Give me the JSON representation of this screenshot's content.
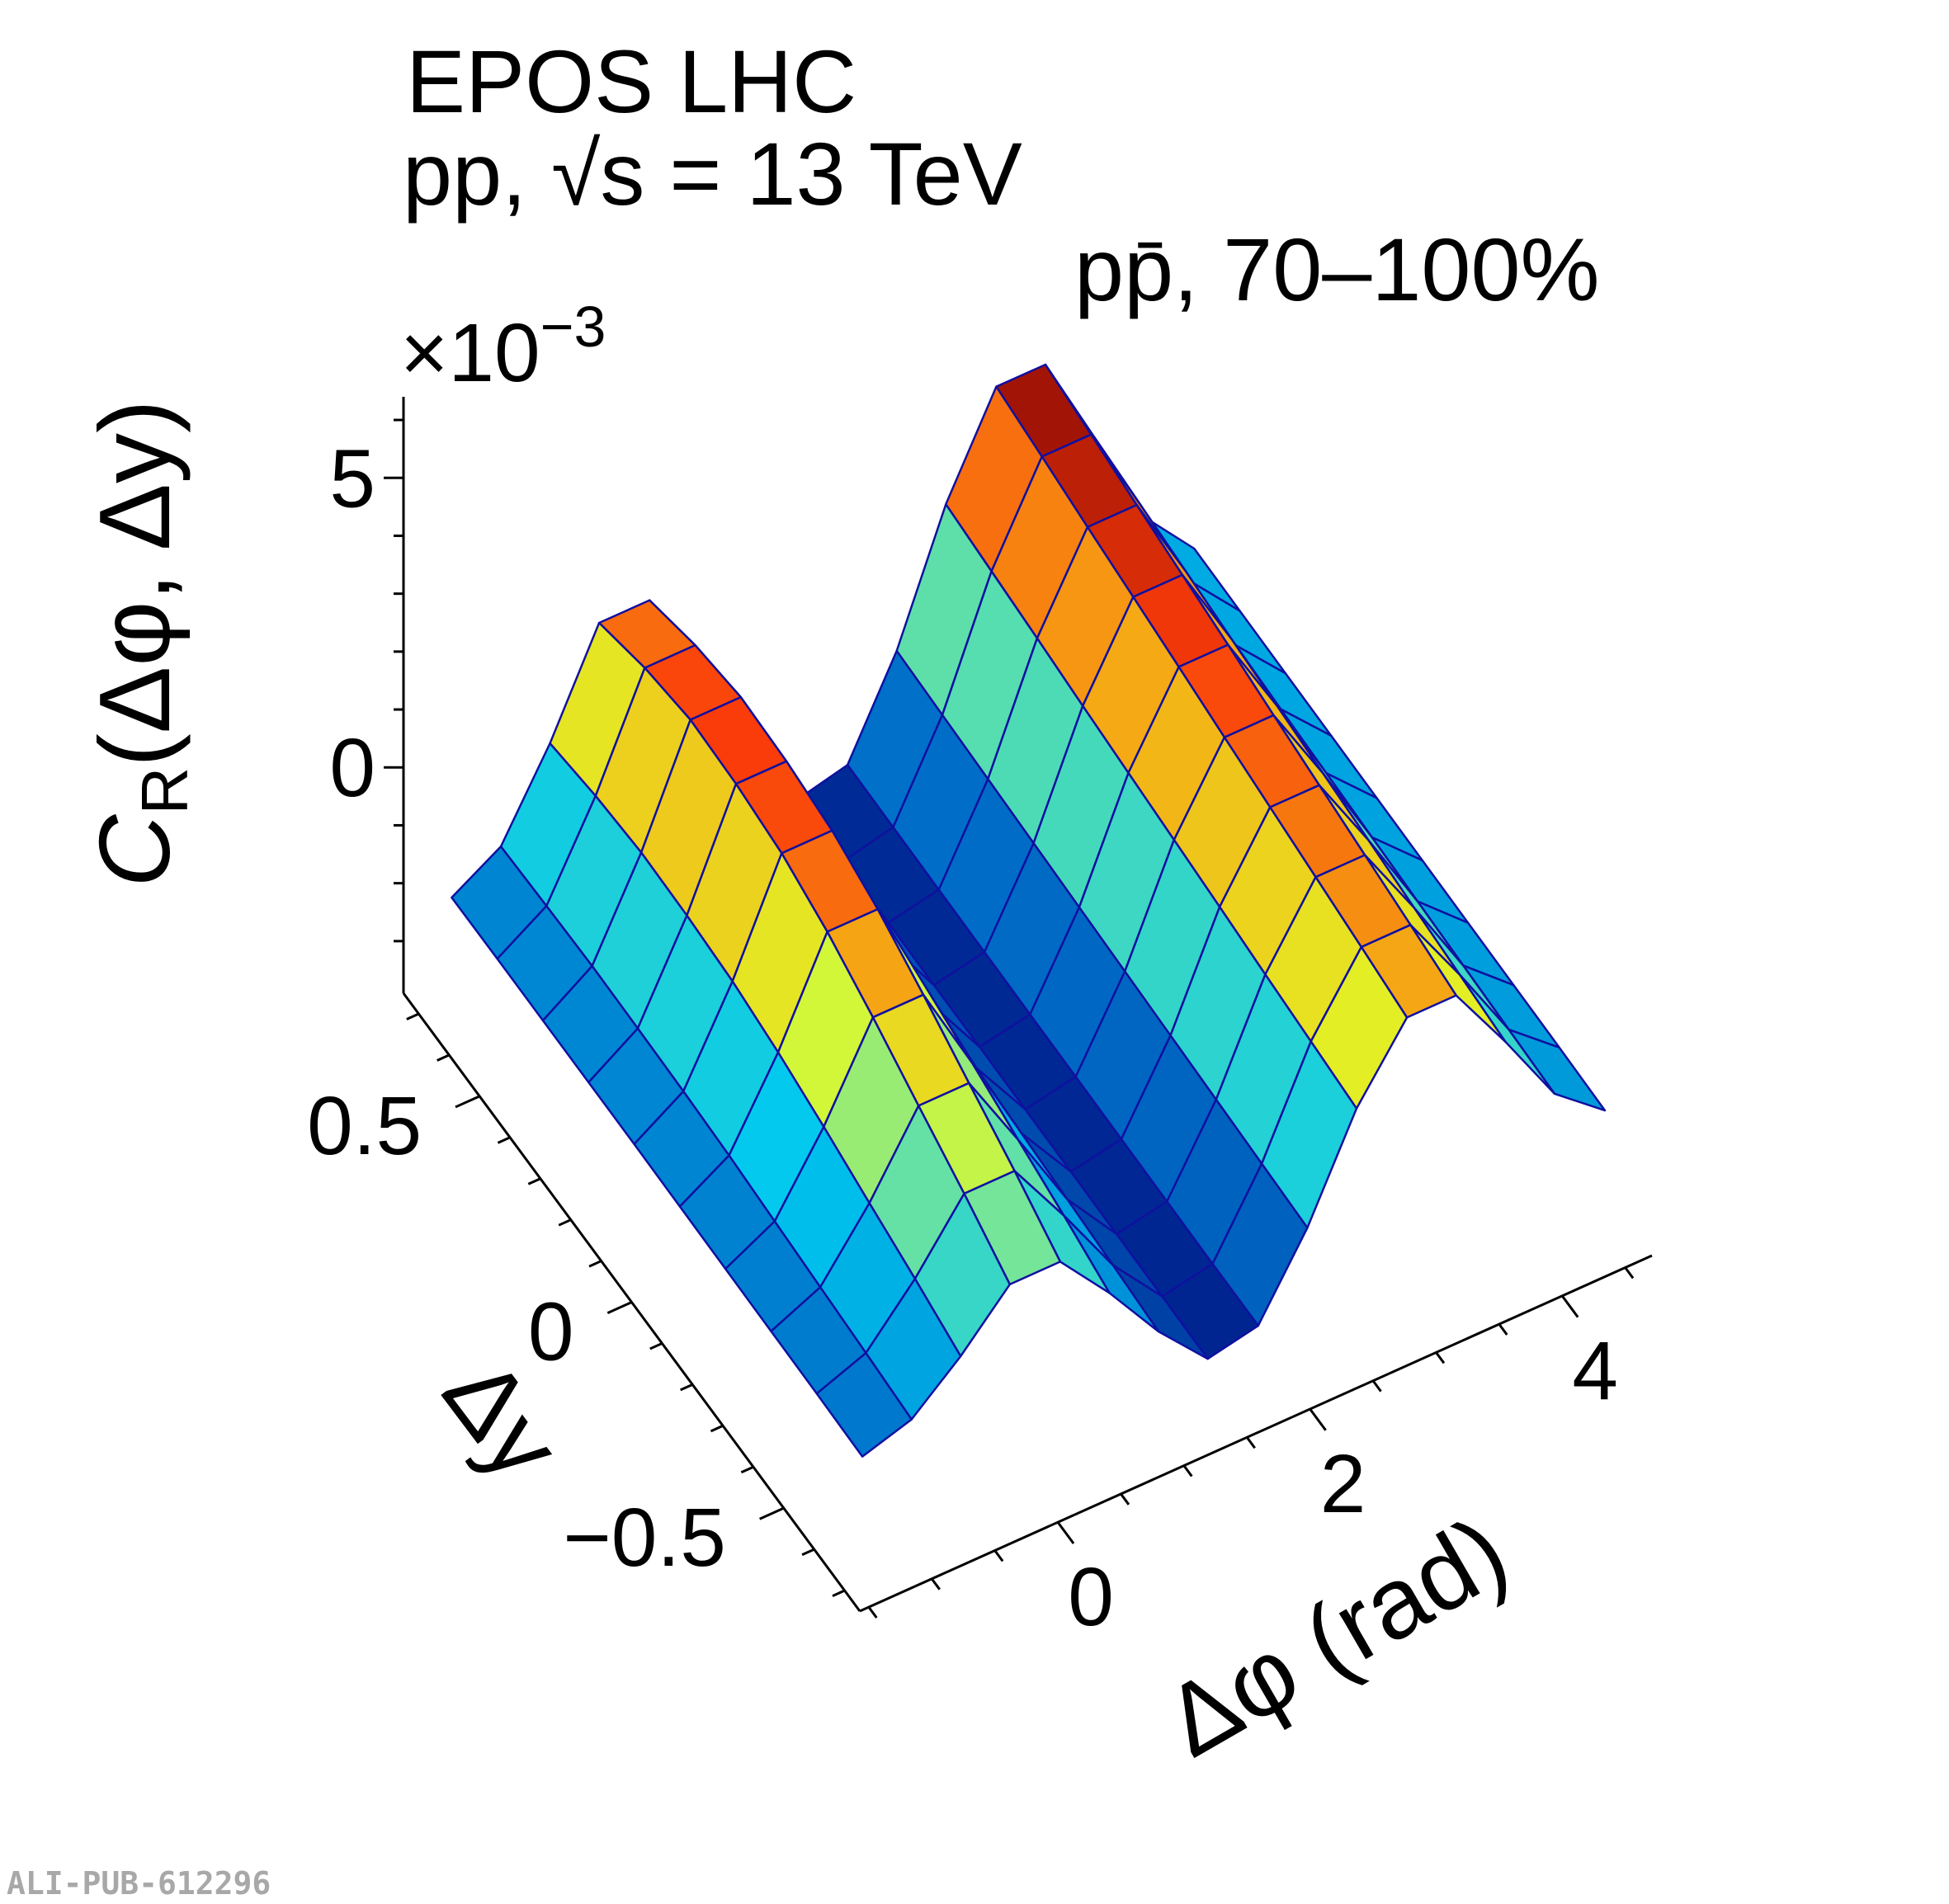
{
  "header": {
    "generator": "EPOS LHC",
    "system": "pp, √s = 13 TeV",
    "pair_label": "pp̄, 70–100%"
  },
  "watermark": "ALI-PUB-612296",
  "chart_data": {
    "type": "surface",
    "title": "",
    "x_axis": {
      "label": "Δφ (rad)",
      "range": [
        -1.571,
        4.712
      ],
      "ticks": [
        0,
        2,
        4
      ],
      "tick_labels": [
        "0",
        "2",
        "4"
      ]
    },
    "y_axis": {
      "label": "Δy",
      "range": [
        -0.75,
        0.75
      ],
      "ticks": [
        0.5,
        0,
        -0.5
      ],
      "tick_labels": [
        "0.5",
        "0",
        "−0.5"
      ]
    },
    "z_axis": {
      "label_main": "C",
      "label_sub": "R",
      "label_rest": "(Δφ, Δy)",
      "multiplier_base": "×10",
      "multiplier_exp": "−3",
      "range": [
        -3.9,
        6.4
      ],
      "ticks": [
        5,
        0
      ],
      "tick_labels": [
        "5",
        "0"
      ]
    },
    "colormap": "jet",
    "grid_color": "#1010a0",
    "phi_centers": [
      -1.37,
      -0.98,
      -0.59,
      -0.2,
      0.2,
      0.59,
      0.98,
      1.37,
      1.77,
      2.16,
      2.55,
      2.95,
      3.34,
      3.73,
      4.12,
      4.52
    ],
    "dy_centers": [
      0.675,
      0.525,
      0.375,
      0.225,
      0.075,
      -0.075,
      -0.225,
      -0.375,
      -0.525,
      -0.675
    ],
    "z_values": [
      [
        -1.91,
        -1.41,
        -0.01,
        1.69,
        1.69,
        -0.07,
        -1.81,
        -2.9,
        -2.69,
        -1.1,
        1.05,
        2.69,
        2.69,
        1.05,
        -0.7,
        -1.64
      ],
      [
        -1.9,
        -1.37,
        0.15,
        1.98,
        1.98,
        0.09,
        -1.77,
        -2.9,
        -2.7,
        -1.14,
        0.96,
        2.55,
        2.55,
        0.96,
        -0.74,
        -1.65
      ],
      [
        -1.9,
        -1.34,
        0.24,
        2.15,
        2.15,
        0.18,
        -1.74,
        -2.89,
        -2.71,
        -1.18,
        0.87,
        2.4,
        2.4,
        0.87,
        -0.78,
        -1.66
      ],
      [
        -1.9,
        -1.35,
        0.22,
        2.11,
        2.11,
        0.16,
        -1.75,
        -2.9,
        -2.72,
        -1.22,
        0.77,
        2.26,
        2.26,
        0.77,
        -0.82,
        -1.67
      ],
      [
        -1.9,
        -1.37,
        0.15,
        1.98,
        1.98,
        0.09,
        -1.77,
        -2.9,
        -2.73,
        -1.26,
        0.68,
        2.12,
        2.12,
        0.68,
        -0.86,
        -1.68
      ],
      [
        -1.91,
        -1.41,
        -0.01,
        1.69,
        1.69,
        -0.07,
        -1.81,
        -2.91,
        -2.74,
        -1.3,
        0.59,
        1.97,
        1.97,
        0.59,
        -0.9,
        -1.69
      ],
      [
        -1.92,
        -1.48,
        -0.23,
        1.28,
        1.28,
        -0.29,
        -1.88,
        -2.92,
        -2.75,
        -1.34,
        0.5,
        1.83,
        1.83,
        0.5,
        -0.94,
        -1.7
      ],
      [
        -1.93,
        -1.55,
        -0.48,
        0.82,
        0.82,
        -0.54,
        -1.95,
        -2.93,
        -2.76,
        -1.38,
        0.4,
        1.69,
        1.69,
        0.4,
        -0.98,
        -1.71
      ],
      [
        -1.94,
        -1.62,
        -0.72,
        0.37,
        0.37,
        -0.78,
        -2.02,
        -2.94,
        -2.77,
        -1.42,
        0.31,
        1.55,
        1.55,
        0.31,
        -1.02,
        -1.72
      ],
      [
        -1.96,
        -1.7,
        -0.99,
        -0.13,
        -0.13,
        -1.05,
        -2.1,
        -2.95,
        -2.77,
        -1.46,
        0.22,
        1.4,
        1.4,
        0.22,
        -1.06,
        -1.74
      ]
    ]
  }
}
